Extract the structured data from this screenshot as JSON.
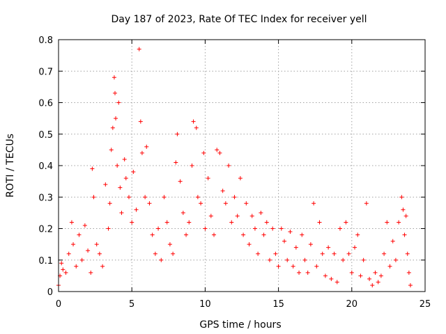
{
  "chart_data": {
    "type": "scatter",
    "title": "Day 187 of 2023, Rate Of TEC Index for receiver yell",
    "xlabel": "GPS time / hours",
    "ylabel": "ROTI / TECUs",
    "xlim": [
      0,
      25
    ],
    "ylim": [
      0,
      0.8
    ],
    "x_ticks": [
      0,
      5,
      10,
      15,
      20,
      25
    ],
    "y_ticks": [
      0,
      0.1,
      0.2,
      0.3,
      0.4,
      0.5,
      0.6,
      0.7,
      0.8
    ],
    "grid": true,
    "marker": "+",
    "color": "#ff0000",
    "series": [
      {
        "values_description_note": "",
        "points": [
          [
            0.0,
            0.02
          ],
          [
            0.1,
            0.05
          ],
          [
            0.2,
            0.09
          ],
          [
            0.3,
            0.07
          ],
          [
            0.5,
            0.06
          ],
          [
            0.7,
            0.12
          ],
          [
            0.9,
            0.22
          ],
          [
            1.0,
            0.15
          ],
          [
            1.2,
            0.08
          ],
          [
            1.4,
            0.18
          ],
          [
            1.6,
            0.1
          ],
          [
            1.8,
            0.21
          ],
          [
            2.0,
            0.13
          ],
          [
            2.2,
            0.06
          ],
          [
            2.3,
            0.39
          ],
          [
            2.4,
            0.3
          ],
          [
            2.6,
            0.15
          ],
          [
            2.8,
            0.12
          ],
          [
            3.0,
            0.08
          ],
          [
            3.2,
            0.34
          ],
          [
            3.4,
            0.2
          ],
          [
            3.5,
            0.28
          ],
          [
            3.6,
            0.45
          ],
          [
            3.7,
            0.52
          ],
          [
            3.8,
            0.68
          ],
          [
            3.85,
            0.63
          ],
          [
            3.9,
            0.55
          ],
          [
            4.0,
            0.4
          ],
          [
            4.1,
            0.6
          ],
          [
            4.2,
            0.33
          ],
          [
            4.3,
            0.25
          ],
          [
            4.5,
            0.42
          ],
          [
            4.6,
            0.36
          ],
          [
            4.8,
            0.3
          ],
          [
            5.0,
            0.22
          ],
          [
            5.1,
            0.38
          ],
          [
            5.3,
            0.26
          ],
          [
            5.5,
            0.77
          ],
          [
            5.6,
            0.54
          ],
          [
            5.7,
            0.44
          ],
          [
            5.9,
            0.3
          ],
          [
            6.0,
            0.46
          ],
          [
            6.2,
            0.28
          ],
          [
            6.4,
            0.18
          ],
          [
            6.6,
            0.12
          ],
          [
            6.8,
            0.2
          ],
          [
            7.0,
            0.1
          ],
          [
            7.2,
            0.3
          ],
          [
            7.4,
            0.22
          ],
          [
            7.6,
            0.15
          ],
          [
            7.8,
            0.12
          ],
          [
            8.0,
            0.41
          ],
          [
            8.1,
            0.5
          ],
          [
            8.3,
            0.35
          ],
          [
            8.5,
            0.25
          ],
          [
            8.7,
            0.18
          ],
          [
            8.9,
            0.22
          ],
          [
            9.1,
            0.4
          ],
          [
            9.2,
            0.54
          ],
          [
            9.4,
            0.52
          ],
          [
            9.5,
            0.3
          ],
          [
            9.7,
            0.28
          ],
          [
            9.9,
            0.44
          ],
          [
            10.0,
            0.2
          ],
          [
            10.2,
            0.36
          ],
          [
            10.4,
            0.24
          ],
          [
            10.6,
            0.18
          ],
          [
            10.8,
            0.45
          ],
          [
            11.0,
            0.44
          ],
          [
            11.2,
            0.32
          ],
          [
            11.4,
            0.28
          ],
          [
            11.6,
            0.4
          ],
          [
            11.8,
            0.22
          ],
          [
            12.0,
            0.3
          ],
          [
            12.2,
            0.24
          ],
          [
            12.4,
            0.36
          ],
          [
            12.6,
            0.18
          ],
          [
            12.8,
            0.28
          ],
          [
            13.0,
            0.15
          ],
          [
            13.2,
            0.24
          ],
          [
            13.4,
            0.2
          ],
          [
            13.6,
            0.12
          ],
          [
            13.8,
            0.25
          ],
          [
            14.0,
            0.18
          ],
          [
            14.2,
            0.22
          ],
          [
            14.4,
            0.1
          ],
          [
            14.6,
            0.2
          ],
          [
            14.8,
            0.12
          ],
          [
            15.0,
            0.08
          ],
          [
            15.2,
            0.2
          ],
          [
            15.4,
            0.16
          ],
          [
            15.6,
            0.1
          ],
          [
            15.8,
            0.19
          ],
          [
            16.0,
            0.08
          ],
          [
            16.2,
            0.14
          ],
          [
            16.4,
            0.06
          ],
          [
            16.6,
            0.18
          ],
          [
            16.8,
            0.1
          ],
          [
            17.0,
            0.06
          ],
          [
            17.2,
            0.15
          ],
          [
            17.4,
            0.28
          ],
          [
            17.6,
            0.08
          ],
          [
            17.8,
            0.22
          ],
          [
            18.0,
            0.12
          ],
          [
            18.2,
            0.05
          ],
          [
            18.4,
            0.14
          ],
          [
            18.6,
            0.04
          ],
          [
            18.8,
            0.12
          ],
          [
            19.0,
            0.03
          ],
          [
            19.2,
            0.2
          ],
          [
            19.4,
            0.1
          ],
          [
            19.6,
            0.22
          ],
          [
            19.8,
            0.12
          ],
          [
            20.0,
            0.06
          ],
          [
            20.2,
            0.14
          ],
          [
            20.4,
            0.18
          ],
          [
            20.6,
            0.05
          ],
          [
            20.8,
            0.1
          ],
          [
            21.0,
            0.28
          ],
          [
            21.2,
            0.04
          ],
          [
            21.4,
            0.02
          ],
          [
            21.6,
            0.06
          ],
          [
            21.8,
            0.03
          ],
          [
            22.0,
            0.05
          ],
          [
            22.2,
            0.12
          ],
          [
            22.4,
            0.22
          ],
          [
            22.6,
            0.08
          ],
          [
            22.8,
            0.16
          ],
          [
            23.0,
            0.1
          ],
          [
            23.2,
            0.22
          ],
          [
            23.4,
            0.3
          ],
          [
            23.5,
            0.26
          ],
          [
            23.6,
            0.18
          ],
          [
            23.7,
            0.24
          ],
          [
            23.8,
            0.12
          ],
          [
            23.9,
            0.06
          ],
          [
            24.0,
            0.02
          ]
        ]
      }
    ]
  }
}
